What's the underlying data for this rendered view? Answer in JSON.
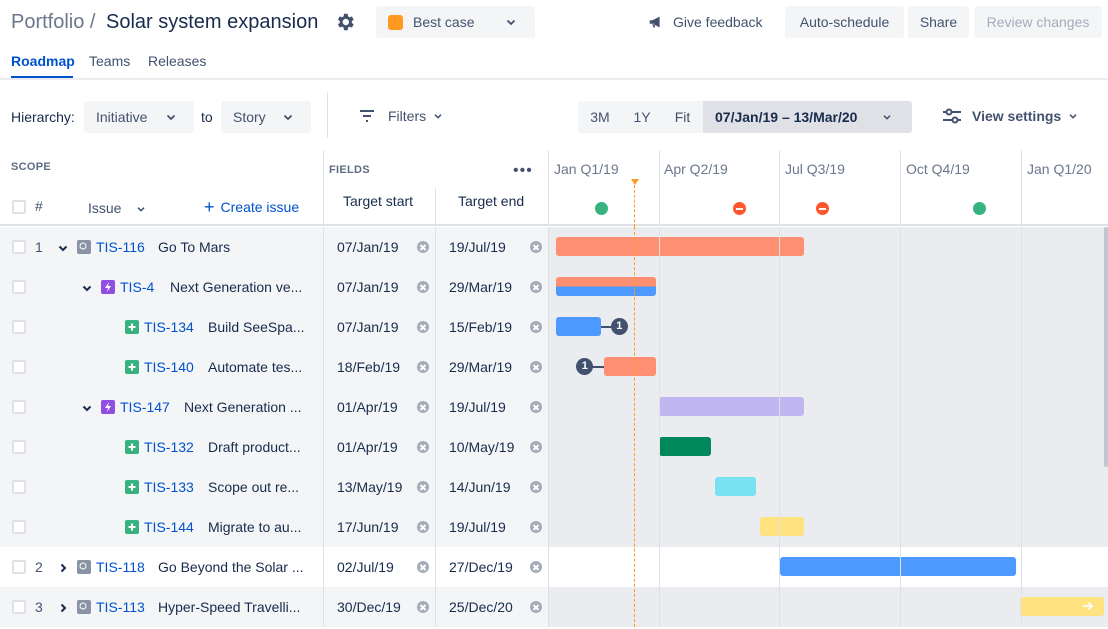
{
  "header": {
    "breadcrumb": "Portfolio /",
    "title": "Solar system expansion",
    "scenario": {
      "label": "Best case",
      "color": "#ff991f"
    },
    "feedback_label": "Give feedback",
    "auto_schedule_label": "Auto-schedule",
    "share_label": "Share",
    "review_label": "Review changes"
  },
  "tabs": [
    {
      "label": "Roadmap",
      "active": true
    },
    {
      "label": "Teams",
      "active": false
    },
    {
      "label": "Releases",
      "active": false
    }
  ],
  "toolbar": {
    "hierarchy_label": "Hierarchy:",
    "hierarchy_from": "Initiative",
    "to_label": "to",
    "hierarchy_to": "Story",
    "filters_label": "Filters",
    "zoom_options": [
      "3M",
      "1Y",
      "Fit"
    ],
    "date_range": "07/Jan/19 – 13/Mar/20",
    "view_settings_label": "View settings"
  },
  "grid_header": {
    "scope_label": "SCOPE",
    "fields_label": "FIELDS",
    "more_label": "•••",
    "hash_label": "#",
    "issue_label": "Issue",
    "create_issue_label": "Create issue",
    "target_start_label": "Target start",
    "target_end_label": "Target end"
  },
  "timeline": {
    "quarters": [
      "Jan Q1/19",
      "Apr Q2/19",
      "Jul Q3/19",
      "Oct Q4/19",
      "Jan Q1/20"
    ],
    "milestones": [
      "green",
      "red",
      "red",
      "green"
    ],
    "colors": {
      "green": "#36b37e",
      "red": "#ff5630",
      "today": "#ff991f"
    }
  },
  "rows": [
    {
      "num": "1",
      "chevron": "down",
      "type": "initiative",
      "key": "TIS-116",
      "summary": "Go To Mars",
      "start": "07/Jan/19",
      "end": "19/Jul/19",
      "bar_color": "#ff8f73",
      "grey": true
    },
    {
      "num": "",
      "chevron": "down",
      "type": "epic",
      "key": "TIS-4",
      "summary": "Next Generation ve...",
      "start": "07/Jan/19",
      "end": "29/Mar/19",
      "bar_color": "#ff8f73",
      "bar_color2": "#4c9aff",
      "grey": true
    },
    {
      "num": "",
      "chevron": "",
      "type": "story",
      "key": "TIS-134",
      "summary": "Build SeeSpa...",
      "start": "07/Jan/19",
      "end": "15/Feb/19",
      "bar_color": "#4c9aff",
      "dependency": "1",
      "grey": true
    },
    {
      "num": "",
      "chevron": "",
      "type": "story",
      "key": "TIS-140",
      "summary": "Automate tes...",
      "start": "18/Feb/19",
      "end": "29/Mar/19",
      "bar_color": "#ff8f73",
      "dependency": "1",
      "grey": true
    },
    {
      "num": "",
      "chevron": "down",
      "type": "epic",
      "key": "TIS-147",
      "summary": "Next Generation ...",
      "start": "01/Apr/19",
      "end": "19/Jul/19",
      "bar_color": "#c0b6f2",
      "grey": true
    },
    {
      "num": "",
      "chevron": "",
      "type": "story",
      "key": "TIS-132",
      "summary": "Draft product...",
      "start": "01/Apr/19",
      "end": "10/May/19",
      "bar_color": "#00875a",
      "grey": true
    },
    {
      "num": "",
      "chevron": "",
      "type": "story",
      "key": "TIS-133",
      "summary": "Scope out re...",
      "start": "13/May/19",
      "end": "14/Jun/19",
      "bar_color": "#79e2f2",
      "grey": true
    },
    {
      "num": "",
      "chevron": "",
      "type": "story",
      "key": "TIS-144",
      "summary": "Migrate to au...",
      "start": "17/Jun/19",
      "end": "19/Jul/19",
      "bar_color": "#ffe380",
      "grey": true
    },
    {
      "num": "2",
      "chevron": "right",
      "type": "initiative",
      "key": "TIS-118",
      "summary": "Go Beyond the Solar ...",
      "start": "02/Jul/19",
      "end": "27/Dec/19",
      "bar_color": "#4c9aff",
      "grey": false
    },
    {
      "num": "3",
      "chevron": "right",
      "type": "initiative",
      "key": "TIS-113",
      "summary": "Hyper-Speed Travelli...",
      "start": "30/Dec/19",
      "end": "25/Dec/20",
      "bar_color": "#ffe380",
      "grey": true
    }
  ]
}
